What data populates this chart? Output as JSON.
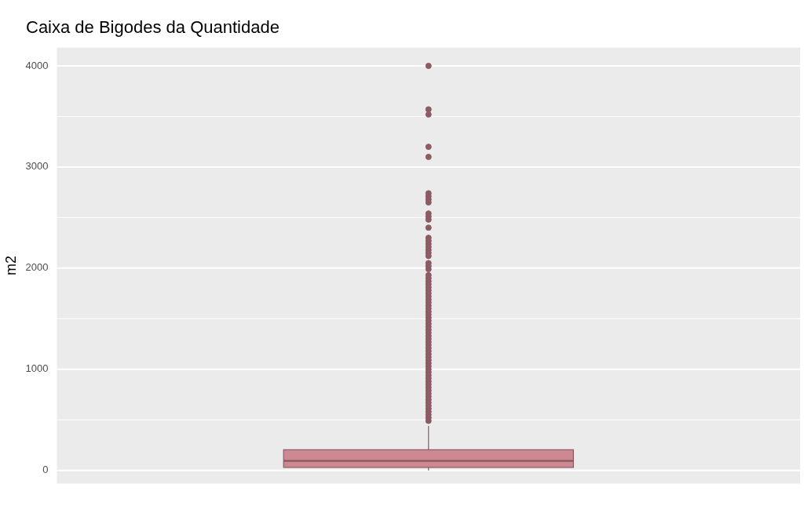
{
  "chart_data": {
    "type": "box",
    "title": "Caixa de Bigodes da Quantidade",
    "ylabel": "m2",
    "categories": [
      null
    ],
    "boxes": [
      {
        "low": 0,
        "q1": 29,
        "median": 95,
        "q3": 204,
        "high": 440,
        "outliers": [
          4000,
          3570,
          3520,
          3200,
          3100,
          2740,
          2710,
          2680,
          2650,
          2540,
          2510,
          2480,
          2400,
          2300,
          2270,
          2240,
          2210,
          2180,
          2150,
          2120,
          2050,
          2020,
          1990,
          1930,
          1900,
          1870,
          1840,
          1810,
          1780,
          1750,
          1720,
          1690,
          1660,
          1630,
          1600,
          1570,
          1540,
          1510,
          1480,
          1450,
          1420,
          1390,
          1360,
          1330,
          1300,
          1270,
          1240,
          1210,
          1180,
          1150,
          1120,
          1090,
          1060,
          1030,
          1000,
          970,
          940,
          910,
          880,
          850,
          820,
          790,
          760,
          730,
          700,
          670,
          640,
          610,
          580,
          550,
          520,
          490
        ]
      }
    ],
    "colors": [
      "#cd8891"
    ],
    "ylim": [
      -130,
      4180
    ],
    "yticks": [
      0,
      {
        "value": 500,
        "label": null
      },
      1000,
      {
        "value": 1500,
        "label": null
      },
      2000,
      {
        "value": 2500,
        "label": null
      },
      3000,
      {
        "value": 3500,
        "label": null
      },
      4000
    ],
    "grid": true,
    "legend": false
  }
}
